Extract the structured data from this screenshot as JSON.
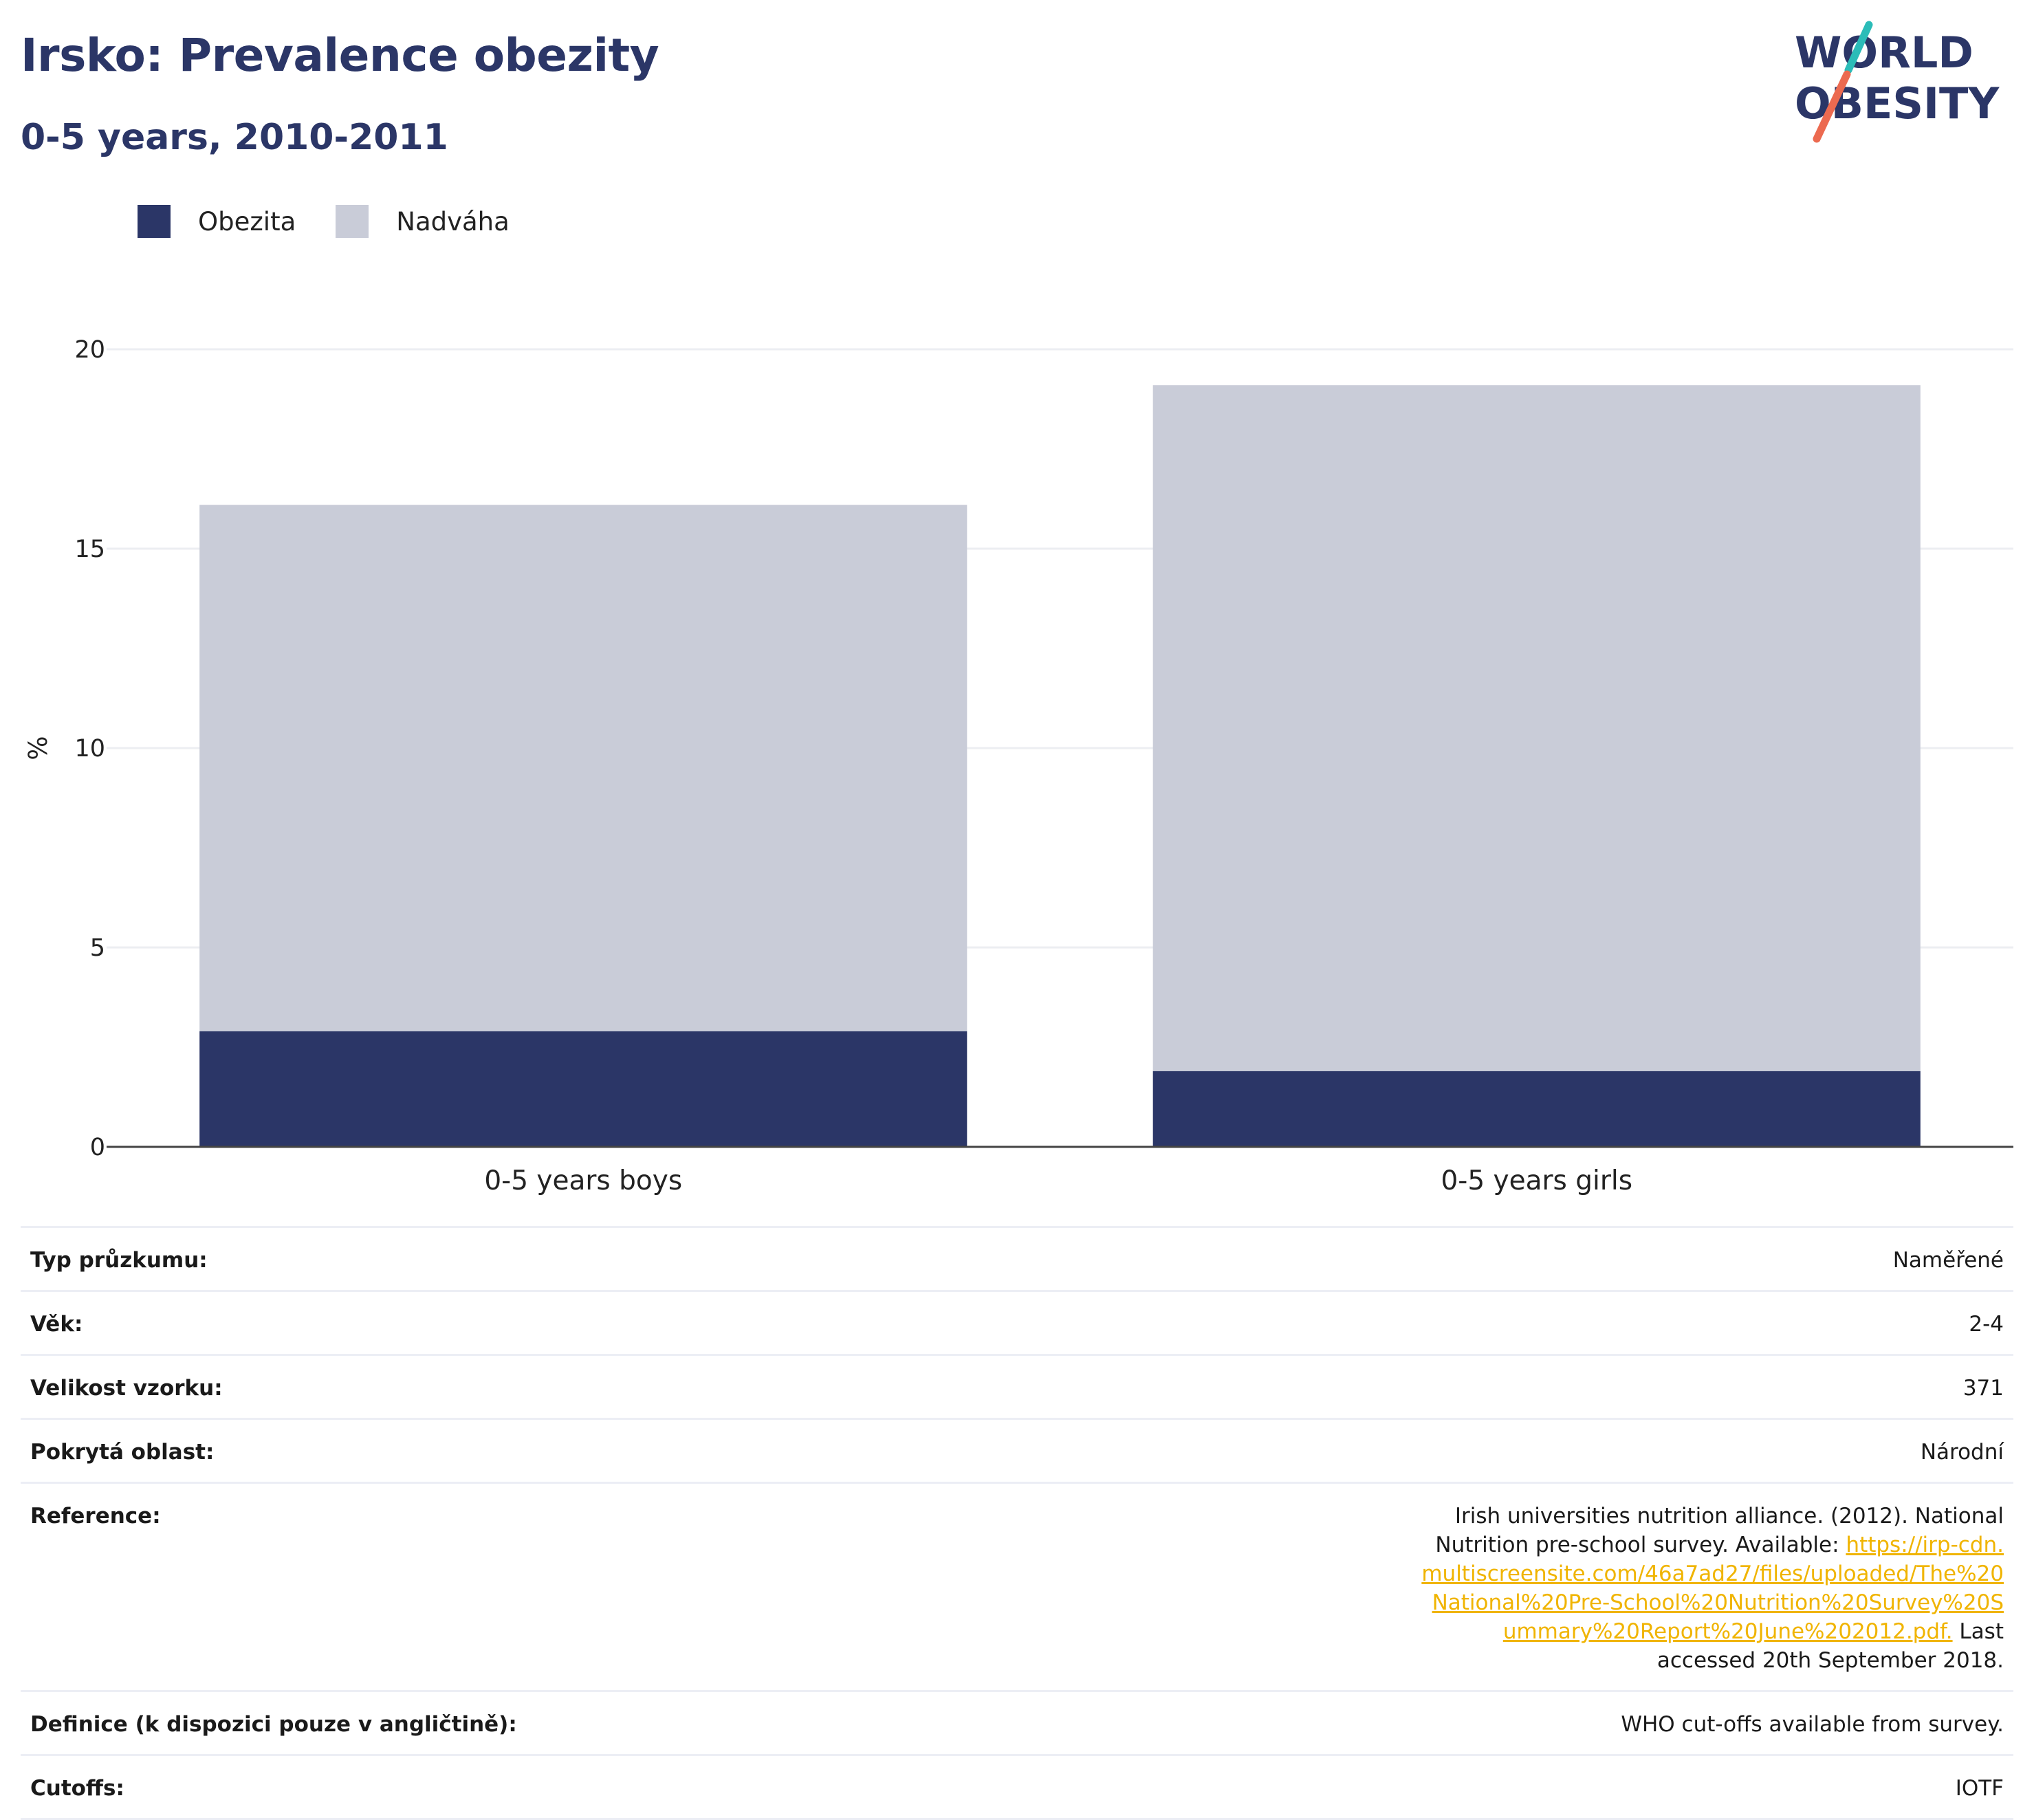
{
  "header": {
    "title": "Irsko: Prevalence obezity",
    "subtitle": "0-5 years, 2010-2011",
    "logo_line1": "WORLD",
    "logo_line2": "OBESITY"
  },
  "colors": {
    "title": "#2b3667",
    "obesity": "#2b3667",
    "overweight": "#c9ccd8",
    "link": "#f0b400",
    "logo_teal": "#2bbcb8",
    "logo_coral": "#ec6a50"
  },
  "legend": [
    {
      "label": "Obezita",
      "color": "#2b3667"
    },
    {
      "label": "Nadváha",
      "color": "#c9ccd8"
    }
  ],
  "chart_data": {
    "type": "bar",
    "stacked": true,
    "categories": [
      "0-5 years boys",
      "0-5 years girls"
    ],
    "series": [
      {
        "name": "Obezita",
        "values": [
          2.9,
          1.9
        ],
        "color": "#2b3667"
      },
      {
        "name": "Nadváha",
        "values": [
          13.2,
          17.2
        ],
        "color": "#c9ccd8"
      }
    ],
    "ylabel": "%",
    "ylim": [
      0,
      20
    ],
    "yticks": [
      0,
      5,
      10,
      15,
      20
    ],
    "grid": true,
    "legend_position": "top-left"
  },
  "info": [
    {
      "label": "Typ průzkumu:",
      "value": "Naměřené"
    },
    {
      "label": "Věk:",
      "value": "2-4"
    },
    {
      "label": "Velikost vzorku:",
      "value": "371"
    },
    {
      "label": "Pokrytá oblast:",
      "value": "Národní"
    },
    {
      "label": "Reference:",
      "value_prefix": "Irish universities nutrition alliance. (2012). National Nutrition pre-school survey. Available: ",
      "link_text": "https://irp-cdn.multiscreensite.com/46a7ad27/files/uploaded/The%20National%20Pre-School%20Nutrition%20Survey%20Summary%20Report%20June%202012.pdf.",
      "value_suffix": " Last accessed 20th September 2018."
    },
    {
      "label": "Definice (k dispozici pouze v angličtině):",
      "value": "WHO cut-offs available from survey."
    },
    {
      "label": "Cutoffs:",
      "value": "IOTF"
    }
  ]
}
